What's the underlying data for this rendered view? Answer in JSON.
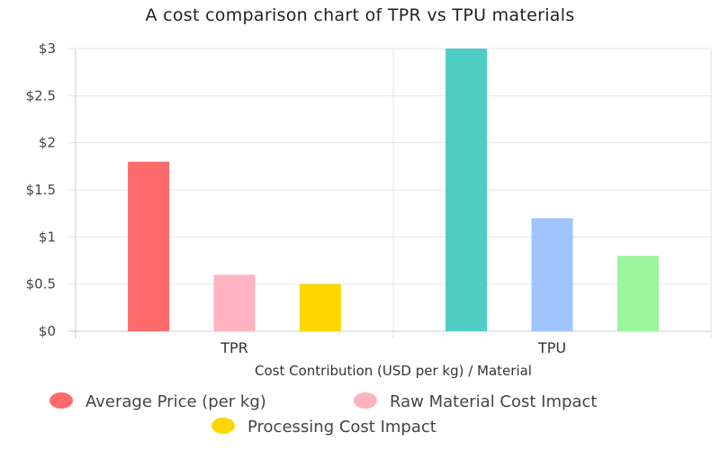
{
  "chart_data": {
    "type": "bar",
    "title": "A cost comparison chart of TPR vs TPU materials",
    "xlabel": "Cost Contribution (USD per kg) / Material",
    "ylabel": "",
    "categories": [
      "TPR",
      "TPU"
    ],
    "ylim": [
      0,
      3
    ],
    "yticks": [
      "$0",
      "$0.5",
      "$1",
      "$1.5",
      "$2",
      "$2.5",
      "$3"
    ],
    "ytick_values": [
      0,
      0.5,
      1,
      1.5,
      2,
      2.5,
      3
    ],
    "grid": true,
    "legend_position": "bottom",
    "legend": [
      {
        "name": "Average Price (per kg)",
        "color": "#ff6b6b"
      },
      {
        "name": "Raw Material Cost Impact",
        "color": "#ffb3c1"
      },
      {
        "name": "Processing Cost Impact",
        "color": "#ffd700"
      }
    ],
    "bars": [
      {
        "category": "TPR",
        "series": "Average Price (per kg)",
        "value": 1.8,
        "color": "#ff6b6b"
      },
      {
        "category": "TPR",
        "series": "Raw Material Cost Impact",
        "value": 0.6,
        "color": "#ffb3c1"
      },
      {
        "category": "TPR",
        "series": "Processing Cost Impact",
        "value": 0.5,
        "color": "#ffd700"
      },
      {
        "category": "TPU",
        "series": "Average Price (per kg)",
        "value": 3.0,
        "color": "#4ecdc4"
      },
      {
        "category": "TPU",
        "series": "Raw Material Cost Impact",
        "value": 1.2,
        "color": "#a0c4ff"
      },
      {
        "category": "TPU",
        "series": "Processing Cost Impact",
        "value": 0.8,
        "color": "#9bf59b"
      }
    ]
  }
}
